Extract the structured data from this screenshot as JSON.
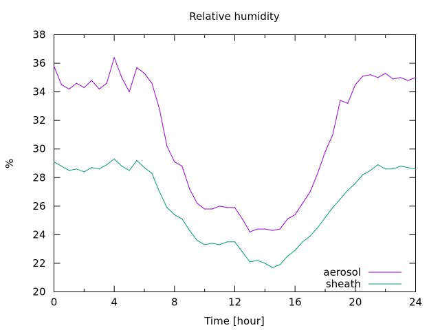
{
  "chart_data": {
    "type": "line",
    "title": "Relative humidity",
    "xlabel": "Time [hour]",
    "ylabel": "%",
    "xlim": [
      0,
      24
    ],
    "ylim": [
      20,
      38
    ],
    "xticks": [
      0,
      4,
      8,
      12,
      16,
      20,
      24
    ],
    "yticks": [
      20,
      22,
      24,
      26,
      28,
      30,
      32,
      34,
      36,
      38
    ],
    "grid": false,
    "legend_position": "bottom-right",
    "x": [
      0,
      0.5,
      1,
      1.5,
      2,
      2.5,
      3,
      3.5,
      4,
      4.5,
      5,
      5.5,
      6,
      6.5,
      7,
      7.5,
      8,
      8.5,
      9,
      9.5,
      10,
      10.5,
      11,
      11.5,
      12,
      12.5,
      13,
      13.5,
      14,
      14.5,
      15,
      15.5,
      16,
      16.5,
      17,
      17.5,
      18,
      18.5,
      19,
      19.5,
      20,
      20.5,
      21,
      21.5,
      22,
      22.5,
      23,
      23.5,
      24
    ],
    "series": [
      {
        "name": "aerosol",
        "color": "#9400d3",
        "values": [
          35.8,
          34.5,
          34.2,
          34.6,
          34.3,
          34.8,
          34.2,
          34.6,
          36.4,
          35.0,
          34.0,
          35.7,
          35.3,
          34.6,
          32.8,
          30.2,
          29.1,
          28.8,
          27.2,
          26.2,
          25.8,
          25.8,
          26.0,
          25.9,
          25.9,
          25.1,
          24.2,
          24.4,
          24.4,
          24.3,
          24.4,
          25.1,
          25.4,
          26.2,
          27.0,
          28.3,
          29.8,
          31.0,
          33.4,
          33.2,
          34.5,
          35.1,
          35.2,
          35.0,
          35.3,
          34.9,
          35.0,
          34.8,
          35.0
        ]
      },
      {
        "name": "sheath",
        "color": "#009e73",
        "values": [
          29.1,
          28.8,
          28.5,
          28.6,
          28.4,
          28.7,
          28.6,
          28.9,
          29.3,
          28.8,
          28.5,
          29.2,
          28.7,
          28.3,
          27.0,
          25.9,
          25.4,
          25.1,
          24.3,
          23.6,
          23.3,
          23.4,
          23.3,
          23.5,
          23.5,
          22.8,
          22.1,
          22.2,
          22.0,
          21.7,
          21.9,
          22.5,
          22.9,
          23.5,
          23.9,
          24.5,
          25.2,
          25.9,
          26.5,
          27.1,
          27.6,
          28.2,
          28.5,
          28.9,
          28.6,
          28.6,
          28.8,
          28.7,
          28.6
        ]
      }
    ]
  }
}
